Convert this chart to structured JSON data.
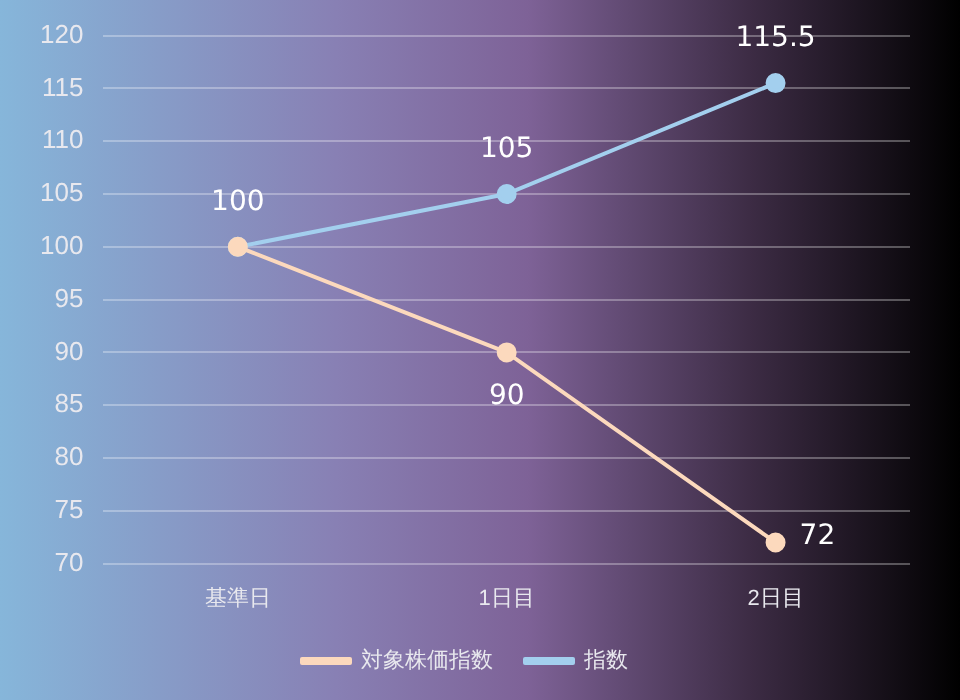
{
  "chart_data": {
    "type": "line",
    "categories": [
      "基準日",
      "1日目",
      "2日目"
    ],
    "series": [
      {
        "name": "指数",
        "color": "#a3cfee",
        "values": [
          100,
          105,
          115.5
        ],
        "value_labels": [
          "100",
          "105",
          "115.5"
        ]
      },
      {
        "name": "対象株価指数",
        "color": "#fcd9bd",
        "values": [
          100,
          90,
          72
        ],
        "value_labels": [
          null,
          "90",
          "72"
        ]
      }
    ],
    "ylim": [
      70,
      120
    ],
    "yticks": [
      70,
      75,
      80,
      85,
      90,
      95,
      100,
      105,
      110,
      115,
      120
    ],
    "grid": "y",
    "legend": "bottom",
    "marker": "circle",
    "line_style": "solid"
  }
}
